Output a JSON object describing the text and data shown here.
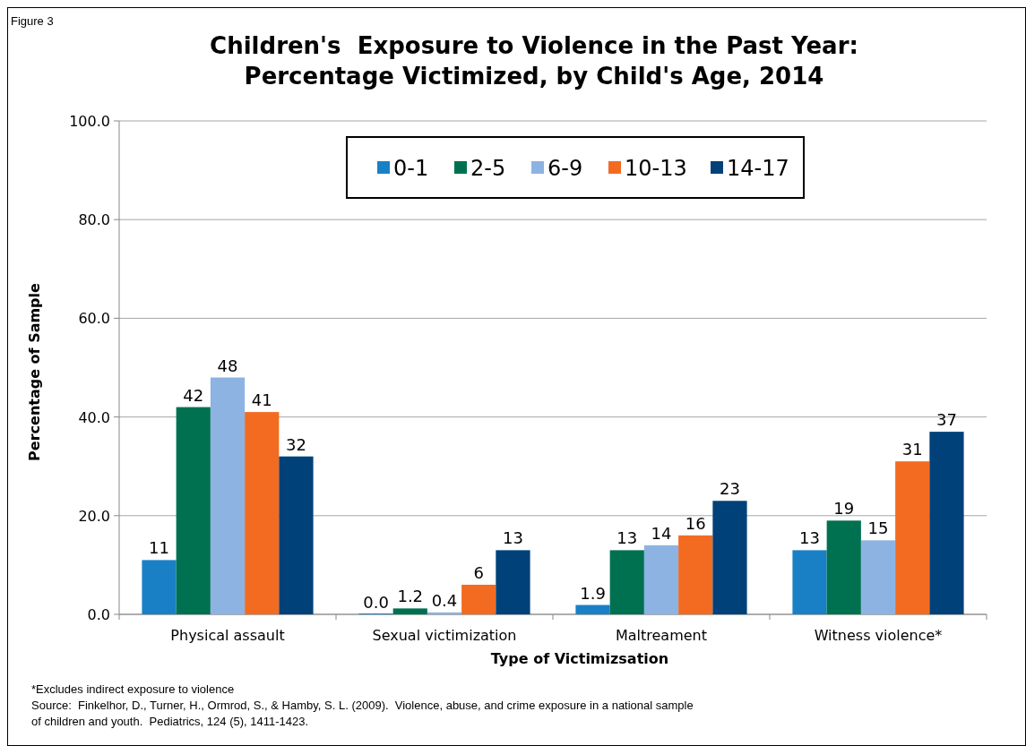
{
  "chart_data": {
    "type": "bar",
    "title": "Children's  Exposure to Violence in the Past Year:\nPercentage Victimized, by Child's Age, 2014",
    "xlabel": "Type of Victimizsation",
    "ylabel": "Percentage of Sample",
    "categories": [
      "Physical assault",
      "Sexual victimization",
      "Maltreament",
      "Witness violence*"
    ],
    "series": [
      {
        "name": "0-1",
        "color": "#1a80c6",
        "values": [
          11,
          0,
          1.9,
          13
        ],
        "value_labels": [
          "11",
          "0.0",
          "1.9",
          "13"
        ]
      },
      {
        "name": "2-5",
        "color": "#007150",
        "values": [
          42,
          1.2,
          13,
          19
        ],
        "value_labels": [
          "42",
          "1.2",
          "13",
          "19"
        ]
      },
      {
        "name": "6-9",
        "color": "#8db3e2",
        "values": [
          48,
          0.4,
          14,
          15
        ],
        "value_labels": [
          "48",
          "0.4",
          "14",
          "15"
        ]
      },
      {
        "name": "10-13",
        "color": "#f26b21",
        "values": [
          41,
          6,
          16,
          31
        ],
        "value_labels": [
          "41",
          "6",
          "16",
          "31"
        ]
      },
      {
        "name": "14-17",
        "color": "#004179",
        "values": [
          32,
          13,
          23,
          37
        ],
        "value_labels": [
          "32",
          "13",
          "23",
          "37"
        ]
      }
    ],
    "ylim": [
      0,
      100
    ],
    "yticks": [
      {
        "value": 0,
        "label": "0.0"
      },
      {
        "value": 20,
        "label": "20.0"
      },
      {
        "value": 40,
        "label": "40.0"
      },
      {
        "value": 60,
        "label": "60.0"
      },
      {
        "value": 80,
        "label": "80.0"
      },
      {
        "value": 100,
        "label": "100.0"
      }
    ],
    "grid": "y",
    "legend": "top",
    "annotations": [
      "Figure 3",
      "*Excludes indirect exposure to violence",
      "Source:  Finkelhor, D., Turner, H., Ormrod, S., & Hamby, S. L. (2009).  Violence, abuse, and crime exposure in a national sample\nof children and youth.  Pediatrics, 124 (5), 1411-1423."
    ]
  }
}
